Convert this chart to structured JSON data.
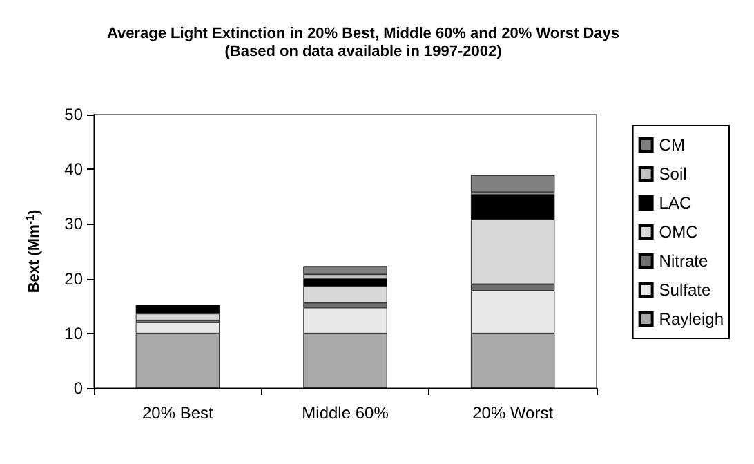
{
  "chart_data": {
    "type": "bar",
    "title": "Average Light Extinction in 20% Best, Middle 60% and 20% Worst Days",
    "subtitle": "(Based on data available in 1997-2002)",
    "ylabel": "Bext (Mm$^{-1}$)",
    "categories": [
      "20% Best",
      "Middle 60%",
      "20% Worst"
    ],
    "stacked": true,
    "ylim": [
      0,
      50
    ],
    "yticks": [
      0,
      10,
      20,
      30,
      40,
      50
    ],
    "grid": false,
    "legend": "right",
    "series": [
      {
        "name": "Rayleigh",
        "color": "#a8a8a8",
        "values": [
          10,
          10,
          10
        ]
      },
      {
        "name": "Sulfate",
        "color": "#e8e8e8",
        "values": [
          2.0,
          4.7,
          7.8
        ]
      },
      {
        "name": "Nitrate",
        "color": "#707070",
        "values": [
          0.4,
          0.9,
          1.2
        ]
      },
      {
        "name": "OMC",
        "color": "#d8d8d8",
        "values": [
          1.2,
          3.0,
          11.8
        ]
      },
      {
        "name": "LAC",
        "color": "#000000",
        "values": [
          1.6,
          1.4,
          4.6
        ]
      },
      {
        "name": "Soil",
        "color": "#c0c0c0",
        "values": [
          null,
          0.8,
          0.4
        ]
      },
      {
        "name": "CM",
        "color": "#808080",
        "values": [
          null,
          1.5,
          3.1
        ]
      }
    ]
  }
}
